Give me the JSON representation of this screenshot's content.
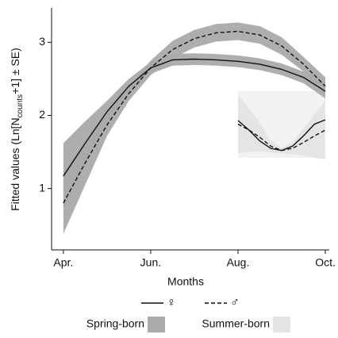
{
  "chart_data": {
    "type": "line",
    "x_label": "Months",
    "y_label_parts": [
      "Fitted values (Ln[N",
      "counts",
      "+1] ± SE)"
    ],
    "xlim": [
      3.73,
      10.09
    ],
    "xticks": [
      {
        "value": 4,
        "label": "Apr."
      },
      {
        "value": 6,
        "label": "Jun."
      },
      {
        "value": 8,
        "label": "Aug."
      },
      {
        "value": 10,
        "label": "Oct."
      }
    ],
    "ylim": [
      0.16,
      3.47
    ],
    "yticks": [
      1,
      2,
      3
    ],
    "bands": [
      {
        "name": "Spring-born",
        "color": "#aaaaaa"
      },
      {
        "name": "Summer-born",
        "color": "#e4e4e4"
      }
    ],
    "series": [
      {
        "name": "♀",
        "style": "solid",
        "color": "#111111",
        "band": 0,
        "x": [
          4,
          4.5,
          5,
          5.5,
          6,
          6.5,
          7,
          7.5,
          8,
          8.5,
          9,
          9.5,
          10
        ],
        "values": [
          1.17,
          1.62,
          2.05,
          2.4,
          2.65,
          2.76,
          2.77,
          2.76,
          2.74,
          2.7,
          2.63,
          2.52,
          2.33
        ],
        "se": [
          0.45,
          0.3,
          0.15,
          0.1,
          0.08,
          0.08,
          0.08,
          0.08,
          0.08,
          0.08,
          0.08,
          0.08,
          0.1
        ]
      },
      {
        "name": "♂",
        "style": "dashed",
        "color": "#111111",
        "band": 0,
        "x": [
          4,
          4.5,
          5,
          5.5,
          6,
          6.5,
          7,
          7.5,
          8,
          8.5,
          9,
          9.5,
          10
        ],
        "values": [
          0.8,
          1.35,
          1.87,
          2.3,
          2.65,
          2.9,
          3.05,
          3.13,
          3.15,
          3.1,
          2.95,
          2.7,
          2.4
        ],
        "se": [
          0.42,
          0.3,
          0.15,
          0.1,
          0.1,
          0.12,
          0.12,
          0.12,
          0.12,
          0.12,
          0.12,
          0.1,
          0.12
        ]
      },
      {
        "style": "solid",
        "color": "#111111",
        "band": 1,
        "x": [
          8,
          8.25,
          8.5,
          8.75,
          9,
          9.25,
          9.5,
          9.75,
          10
        ],
        "values": [
          1.93,
          1.8,
          1.65,
          1.55,
          1.52,
          1.58,
          1.72,
          1.88,
          1.94
        ],
        "se": [
          0.15,
          0.12,
          0.1,
          0.06,
          0.04,
          0.06,
          0.1,
          0.12,
          0.15
        ]
      },
      {
        "style": "dashed",
        "color": "#111111",
        "band": 1,
        "x": [
          8,
          8.25,
          8.5,
          8.75,
          9,
          9.25,
          9.5,
          9.75,
          10
        ],
        "values": [
          1.88,
          1.8,
          1.7,
          1.58,
          1.52,
          1.55,
          1.63,
          1.72,
          1.8
        ],
        "se": [
          0.4,
          0.3,
          0.2,
          0.08,
          0.04,
          0.08,
          0.18,
          0.3,
          0.4
        ]
      }
    ]
  }
}
